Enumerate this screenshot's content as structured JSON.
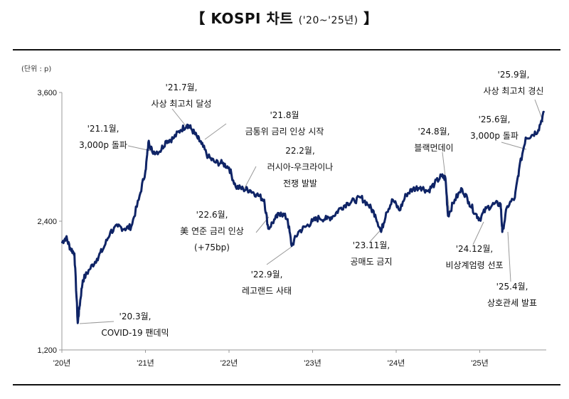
{
  "title": {
    "main": "【  KOSPI 차트",
    "sub": "('20~'25년)",
    "close": "】"
  },
  "unit_label": "(단위 : p)",
  "chart_data": {
    "type": "line",
    "title": "KOSPI 차트 ('20~'25년)",
    "xlabel": "",
    "ylabel": "p",
    "ylim": [
      1200,
      3600
    ],
    "xlim": [
      2020.0,
      2025.77
    ],
    "y_ticks": [
      {
        "value": 1200,
        "label": "1,200"
      },
      {
        "value": 2400,
        "label": "2,400"
      },
      {
        "value": 3600,
        "label": "3,600"
      }
    ],
    "x_ticks": [
      {
        "value": 2020,
        "label": "'20년"
      },
      {
        "value": 2021,
        "label": "'21년"
      },
      {
        "value": 2022,
        "label": "'22년"
      },
      {
        "value": 2023,
        "label": "'23년"
      },
      {
        "value": 2024,
        "label": "'24년"
      },
      {
        "value": 2025,
        "label": "'25년"
      }
    ],
    "series": [
      {
        "name": "KOSPI",
        "color": "#0f2466",
        "x": [
          2020.0,
          2020.05,
          2020.1,
          2020.15,
          2020.19,
          2020.21,
          2020.25,
          2020.33,
          2020.42,
          2020.5,
          2020.58,
          2020.67,
          2020.75,
          2020.83,
          2020.92,
          2021.0,
          2021.04,
          2021.08,
          2021.17,
          2021.25,
          2021.33,
          2021.42,
          2021.5,
          2021.55,
          2021.62,
          2021.67,
          2021.75,
          2021.83,
          2021.92,
          2022.0,
          2022.08,
          2022.17,
          2022.25,
          2022.33,
          2022.42,
          2022.47,
          2022.55,
          2022.62,
          2022.7,
          2022.75,
          2022.83,
          2022.92,
          2023.0,
          2023.08,
          2023.17,
          2023.25,
          2023.33,
          2023.42,
          2023.5,
          2023.58,
          2023.67,
          2023.75,
          2023.82,
          2023.88,
          2023.96,
          2024.04,
          2024.12,
          2024.2,
          2024.29,
          2024.38,
          2024.46,
          2024.54,
          2024.59,
          2024.62,
          2024.7,
          2024.79,
          2024.87,
          2024.95,
          2025.0,
          2025.08,
          2025.17,
          2025.25,
          2025.27,
          2025.33,
          2025.42,
          2025.47,
          2025.55,
          2025.62,
          2025.7,
          2025.77
        ],
        "values": [
          2200,
          2250,
          2150,
          2100,
          1450,
          1600,
          1850,
          1950,
          2050,
          2150,
          2300,
          2350,
          2330,
          2350,
          2600,
          2870,
          3150,
          3050,
          3050,
          3150,
          3170,
          3250,
          3300,
          3260,
          3180,
          3120,
          3000,
          2950,
          2940,
          2900,
          2720,
          2700,
          2690,
          2650,
          2600,
          2330,
          2420,
          2480,
          2420,
          2170,
          2300,
          2350,
          2400,
          2430,
          2420,
          2450,
          2520,
          2570,
          2590,
          2620,
          2550,
          2460,
          2300,
          2480,
          2600,
          2500,
          2650,
          2700,
          2720,
          2680,
          2750,
          2820,
          2800,
          2450,
          2600,
          2700,
          2580,
          2470,
          2420,
          2520,
          2560,
          2560,
          2300,
          2540,
          2620,
          2880,
          3180,
          3200,
          3250,
          3420
        ]
      }
    ],
    "annotations": [
      {
        "date": "'20.3월,",
        "text": "COVID-19 팬데믹"
      },
      {
        "date": "'21.1월,",
        "text": "3,000p 돌파"
      },
      {
        "date": "'21.7월,",
        "text": "사상 최고치 달성"
      },
      {
        "date": "'21.8월",
        "text": "금통위 금리 인상 시작"
      },
      {
        "date": "22.2월,",
        "text": "러시아-우크라이나",
        "text2": "전쟁 발발"
      },
      {
        "date": "'22.6월,",
        "text": "美 연준 금리 인상",
        "text2": "(+75bp)"
      },
      {
        "date": "'22.9월,",
        "text": "레고랜드 사태"
      },
      {
        "date": "'23.11월,",
        "text": "공매도 금지"
      },
      {
        "date": "'24.8월,",
        "text": "블랙먼데이"
      },
      {
        "date": "'24.12월,",
        "text": "비상계엄령 선포"
      },
      {
        "date": "'25.4월,",
        "text": "상호관세 발표"
      },
      {
        "date": "'25.6월,",
        "text": "3,000p 돌파"
      },
      {
        "date": "'25.9월,",
        "text": "사상 최고치 경신"
      }
    ]
  }
}
